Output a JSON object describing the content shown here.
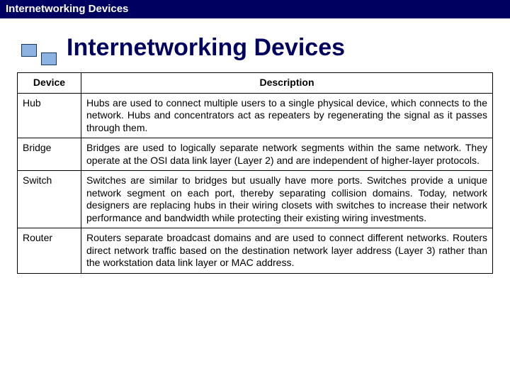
{
  "topbar": {
    "title": "Internetworking Devices"
  },
  "slide": {
    "title": "Internetworking Devices"
  },
  "table": {
    "headers": {
      "device": "Device",
      "description": "Description"
    },
    "rows": [
      {
        "device": "Hub",
        "description": "Hubs are used to connect multiple users to a single physical device, which connects to the network. Hubs and concentrators act as repeaters by regenerating the signal as it passes through them."
      },
      {
        "device": "Bridge",
        "description": "Bridges are used to logically separate network segments within the same network. They operate at the OSI data link layer (Layer 2) and are independent of higher-layer protocols."
      },
      {
        "device": "Switch",
        "description": "Switches are similar to bridges but usually have more ports. Switches provide a unique network segment on each port, thereby separating collision domains. Today, network designers are replacing hubs in their wiring closets with switches to increase their network performance and bandwidth while protecting their existing wiring investments."
      },
      {
        "device": "Router",
        "description": "Routers separate broadcast domains and are used to connect different networks. Routers direct network traffic based on the destination network layer address (Layer 3) rather than the workstation data link layer or MAC address."
      }
    ]
  },
  "colors": {
    "topbar_bg": "#000060",
    "title_color": "#000060",
    "block_fill": "#8db3e2",
    "block_border": "#17365d",
    "table_border": "#000000"
  }
}
